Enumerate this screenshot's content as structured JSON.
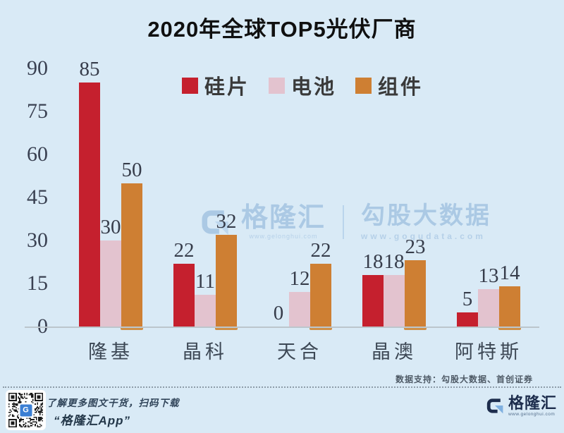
{
  "title": "2020年全球TOP5光伏厂商",
  "chart_data": {
    "type": "bar",
    "categories": [
      "隆基",
      "晶科",
      "天合",
      "晶澳",
      "阿特斯"
    ],
    "series": [
      {
        "name": "硅片",
        "color": "#c5202e",
        "values": [
          85,
          22,
          0,
          18,
          5
        ]
      },
      {
        "name": "电池",
        "color": "#e3c3cf",
        "values": [
          30,
          11,
          12,
          18,
          13
        ]
      },
      {
        "name": "组件",
        "color": "#ce7f33",
        "values": [
          50,
          32,
          22,
          23,
          14
        ]
      }
    ],
    "ylim": [
      0,
      90
    ],
    "yticks": [
      0,
      15,
      30,
      45,
      60,
      75,
      90
    ],
    "grid": false,
    "legend_position": "top-center",
    "xlabel": "",
    "ylabel": ""
  },
  "watermark": {
    "brand": "格隆汇",
    "brand_url": "www.gelonghui.com",
    "partner": "勾股大数据",
    "partner_url": "www.gogudata.com"
  },
  "source_note": "数据支持：勾股大数据、首创证券",
  "footer": {
    "caption_line1": "了解更多图文干货，扫码下载",
    "caption_line2": "“格隆汇App”",
    "qr_badge_letter": "G",
    "logo_text": "格隆汇",
    "logo_url": "www.gelonghui.com"
  },
  "colors": {
    "background": "#d9eaf6",
    "series_red": "#c5202e",
    "series_pink": "#e3c3cf",
    "series_orange": "#ce7f33",
    "watermark_blue": "#a9c8e4",
    "brand_navy": "#1d2d4d"
  }
}
